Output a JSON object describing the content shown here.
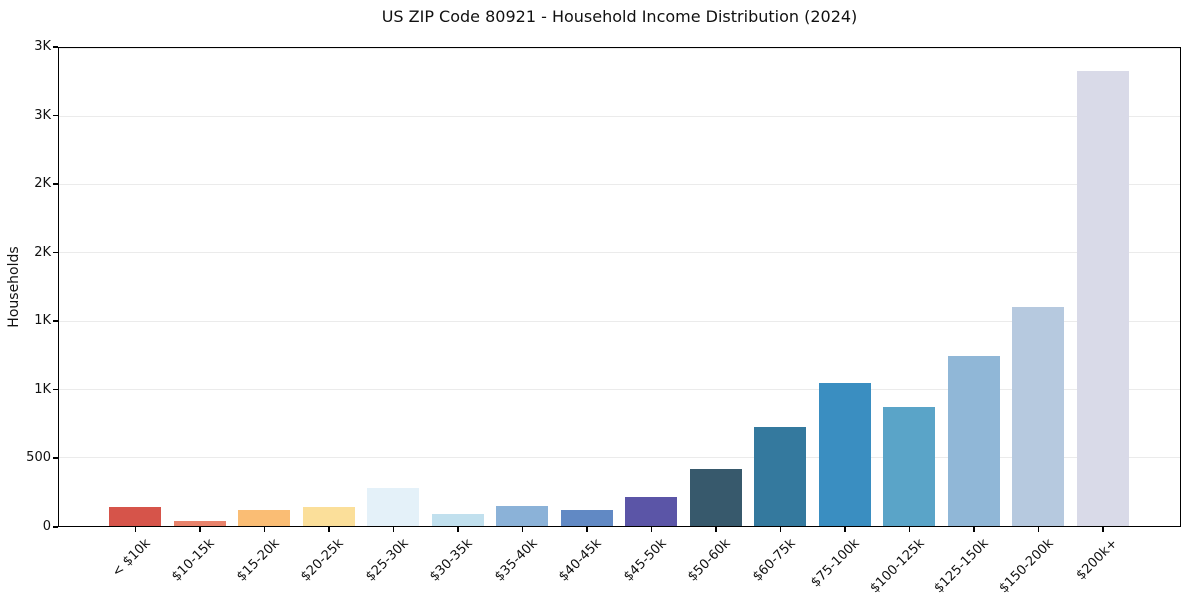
{
  "title": "US ZIP Code 80921 - Household Income Distribution (2024)",
  "chart_data": {
    "type": "bar",
    "title": "US ZIP Code 80921 - Household Income Distribution (2024)",
    "xlabel": "",
    "ylabel": "Households",
    "categories": [
      "< $10k",
      "$10-15k",
      "$15-20k",
      "$20-25k",
      "$25-30k",
      "$30-35k",
      "$35-40k",
      "$40-45k",
      "$45-50k",
      "$50-60k",
      "$60-75k",
      "$75-100k",
      "$100-125k",
      "$125-150k",
      "$150-200k",
      "$200k+"
    ],
    "values": [
      140,
      40,
      120,
      140,
      280,
      85,
      145,
      120,
      210,
      420,
      730,
      1050,
      870,
      1245,
      1610,
      3340
    ],
    "bar_colors": [
      "#d6544a",
      "#e8826b",
      "#fabd74",
      "#fbdf9a",
      "#e4f1f9",
      "#c1e0ee",
      "#8bb2d8",
      "#6189c4",
      "#5b55a7",
      "#37596c",
      "#34799e",
      "#3a8ec1",
      "#5aa4c8",
      "#90b7d7",
      "#b6c9df",
      "#d9dae8"
    ],
    "ylim": [
      0,
      3500
    ],
    "ytick_values": [
      0,
      500,
      1000,
      1500,
      2000,
      2500,
      3000,
      3500
    ],
    "ytick_labels": [
      "0",
      "500",
      "1K",
      "1K",
      "2K",
      "2K",
      "3K",
      "3K"
    ],
    "grid": "horizontal",
    "gridline_color": "#ebebeb",
    "legend_position": "none",
    "background_color": "#ffffff"
  }
}
